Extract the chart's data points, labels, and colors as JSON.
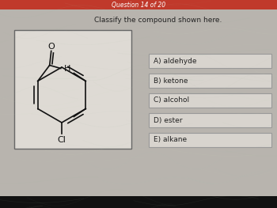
{
  "header_text": "Question 14 of 20",
  "header_bg": "#c0392b",
  "header_text_color": "#ffffff",
  "question_text": "Classify the compound shown here.",
  "bg_color_top": "#c8c4be",
  "bg_color": "#b8b4ae",
  "molecule_box_bg": "#dedad4",
  "molecule_box_border": "#666666",
  "options": [
    "A) aldehyde",
    "B) ketone",
    "C) alcohol",
    "D) ester",
    "E) alkane"
  ],
  "option_box_bg": "#d8d4ce",
  "option_box_border": "#999999",
  "text_color": "#222222",
  "title_fontsize": 5.5,
  "question_fontsize": 6.5,
  "option_fontsize": 6.5
}
